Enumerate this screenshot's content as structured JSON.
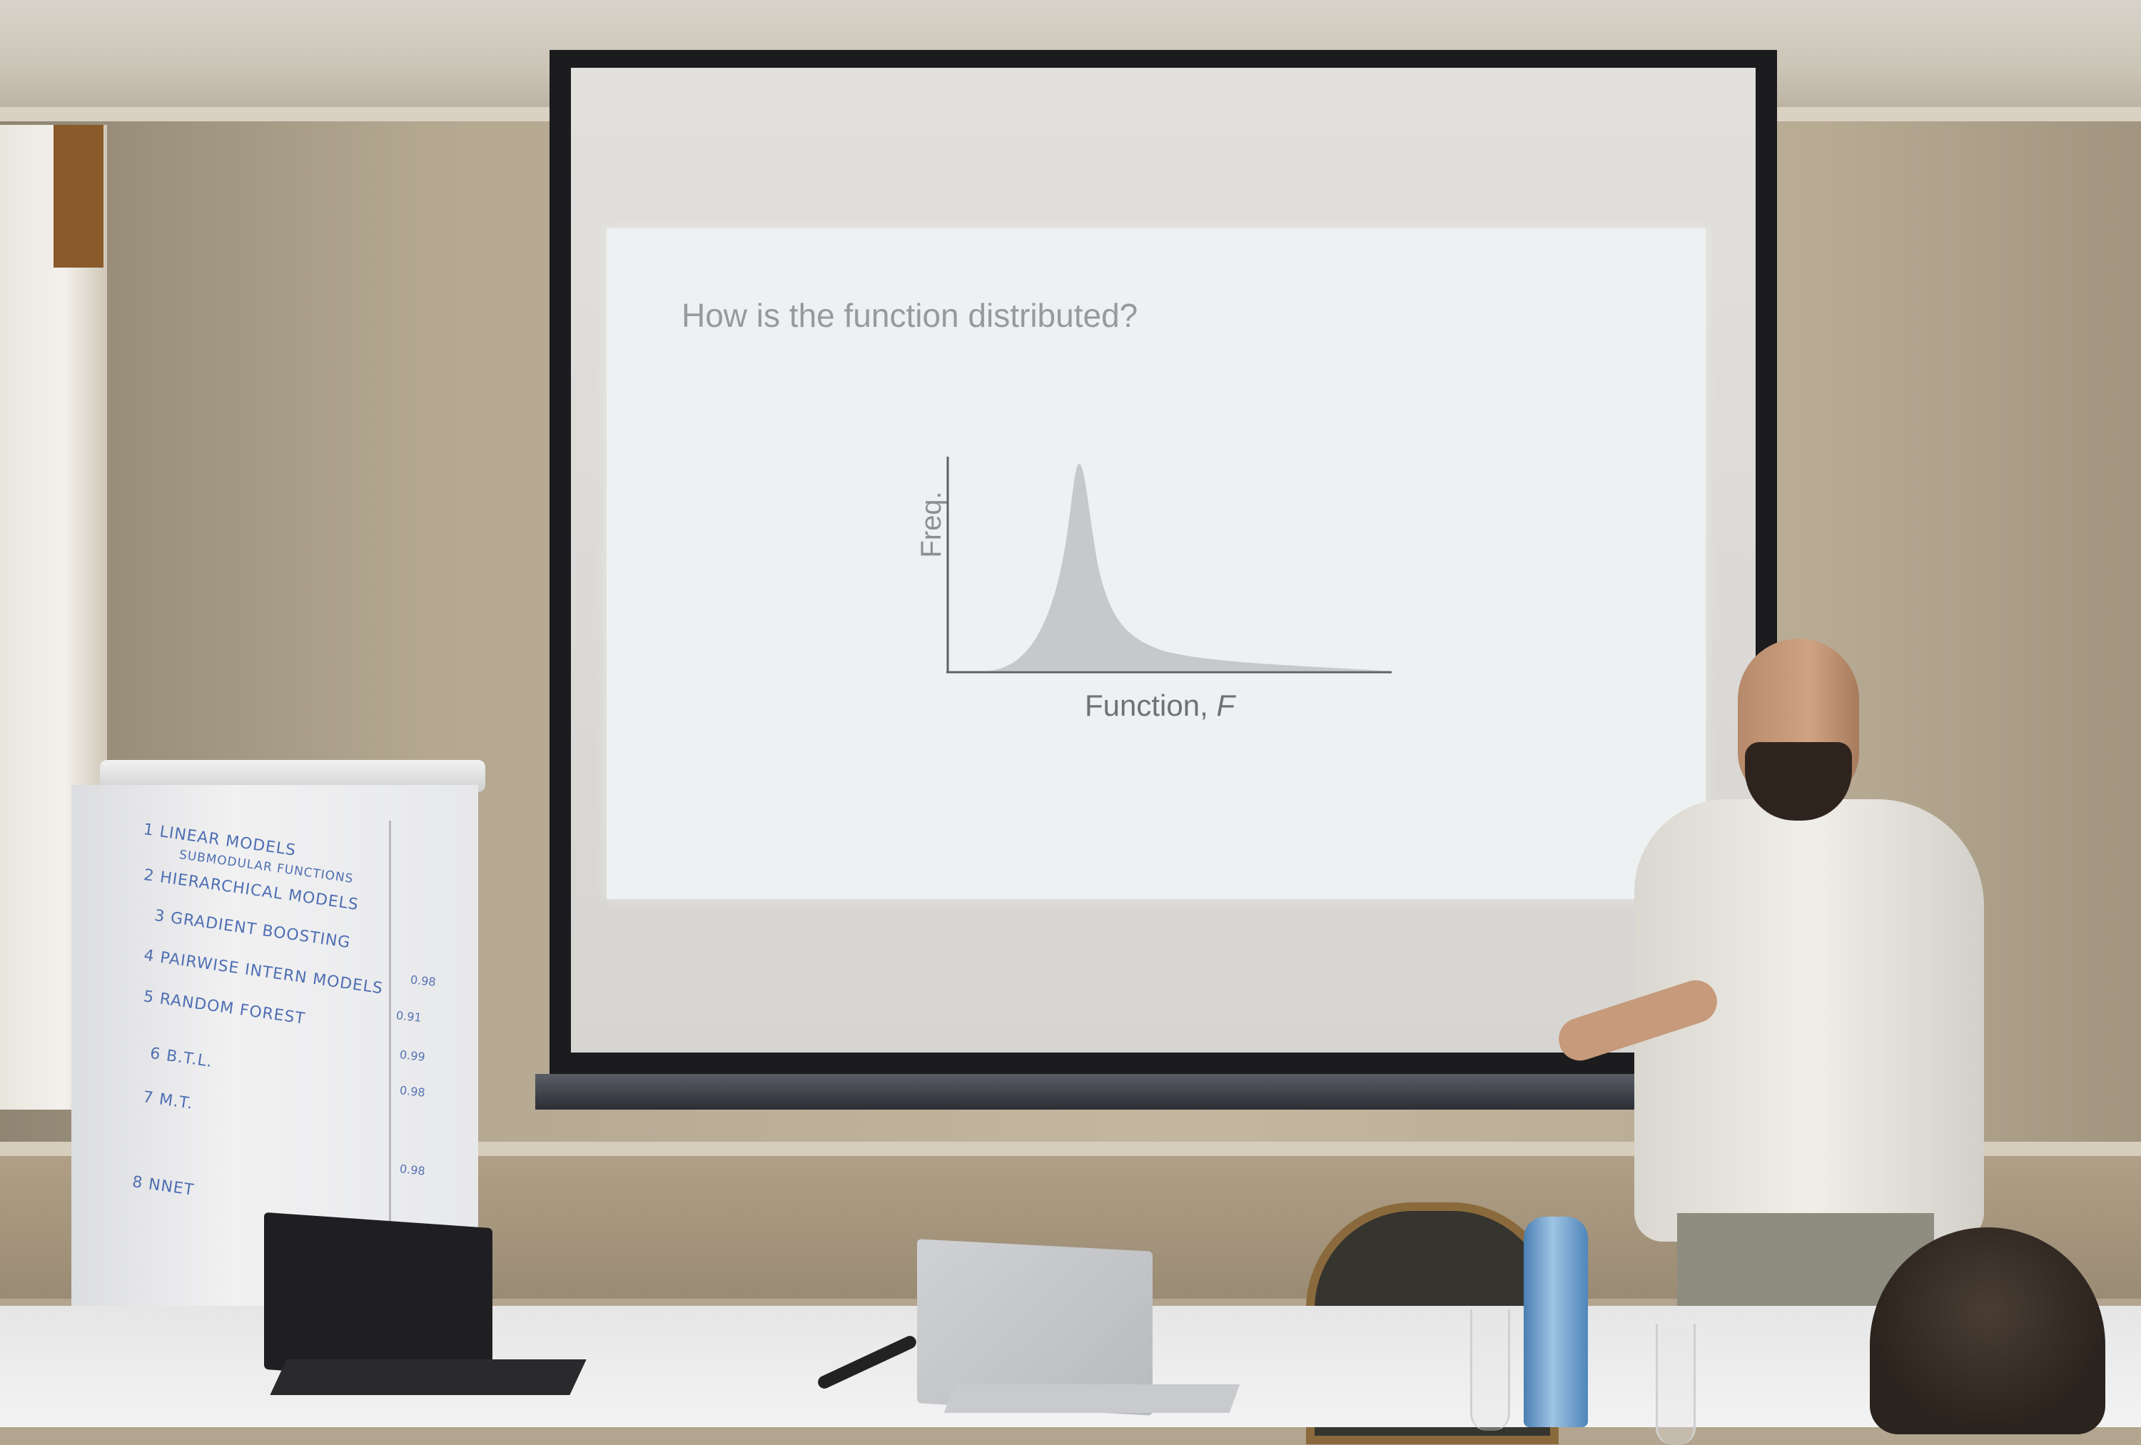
{
  "slide": {
    "title": "How is the function distributed?",
    "y_axis_label": "Freq.",
    "x_axis_label": "Function,",
    "x_axis_variable": "F"
  },
  "flipchart": {
    "lines": [
      "1 LINEAR MODELS",
      "SUBMODULAR FUNCTIONS",
      "2 HIERARCHICAL MODELS",
      "3 GRADIENT BOOSTING",
      "4 PAIRWISE INTERN MODELS",
      "5 RANDOM FOREST",
      "6 B.T.L.",
      "7 M.T.",
      "8 NNET"
    ],
    "scores": [
      "0.98",
      "0.91",
      "0.99",
      "0.98",
      "0.98"
    ]
  },
  "colors": {
    "slide_background": "#eef1f2",
    "curve_fill": "#c6c9cb",
    "axis": "#5d6266",
    "marker": "#4f6fb3"
  }
}
